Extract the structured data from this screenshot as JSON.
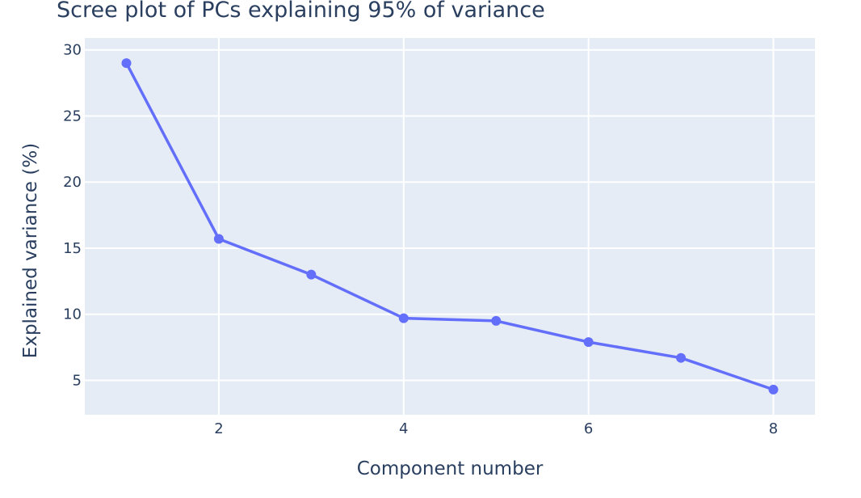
{
  "chart_data": {
    "type": "line",
    "title": "Scree plot of PCs explaining 95% of variance",
    "xlabel": "Component number",
    "ylabel": "Explained variance (%)",
    "x": [
      1,
      2,
      3,
      4,
      5,
      6,
      7,
      8
    ],
    "series": [
      {
        "values": [
          29.0,
          15.7,
          13.0,
          9.7,
          9.5,
          7.9,
          6.7,
          4.3
        ]
      }
    ],
    "xlim": [
      0.55,
      8.45
    ],
    "ylim": [
      2.4,
      30.9
    ],
    "x_ticks": [
      2,
      4,
      6,
      8
    ],
    "y_ticks": [
      5,
      10,
      15,
      20,
      25,
      30
    ],
    "grid": true,
    "legend": false,
    "markers": true,
    "colors": {
      "line": "#636efa",
      "plot_background": "#e5ecf6",
      "grid": "#ffffff",
      "text": "#2a3f5f"
    }
  }
}
